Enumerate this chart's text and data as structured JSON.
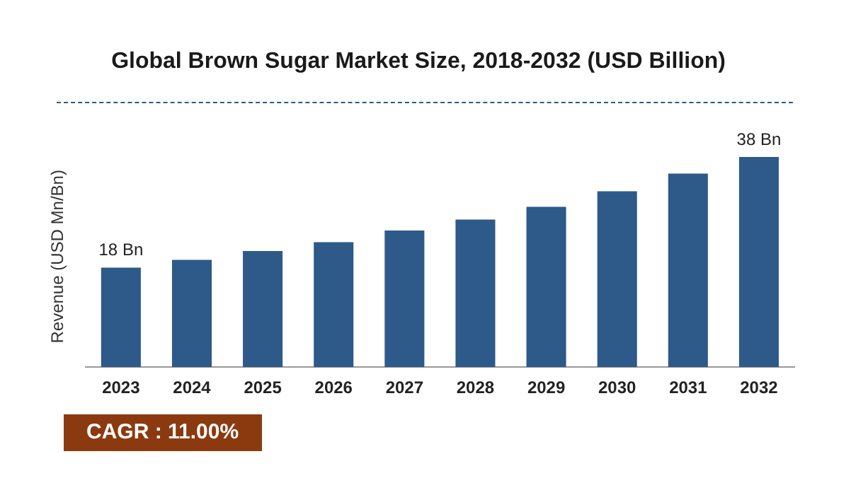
{
  "chart_data": {
    "type": "bar",
    "title": "Global Brown Sugar Market Size, 2018-2032 (USD Billion)",
    "ylabel": "Revenue (USD Mn/Bn)",
    "categories": [
      "2023",
      "2024",
      "2025",
      "2026",
      "2027",
      "2028",
      "2029",
      "2030",
      "2031",
      "2032"
    ],
    "values": [
      18,
      19.4,
      21,
      22.6,
      24.7,
      26.7,
      29,
      31.8,
      35,
      38
    ],
    "value_labels": [
      "18 Bn",
      null,
      null,
      null,
      null,
      null,
      null,
      null,
      null,
      "38 Bn"
    ],
    "color": "#2d5a88",
    "annotations": [
      "CAGR : 11.00%"
    ],
    "grid": false,
    "legend": false
  }
}
